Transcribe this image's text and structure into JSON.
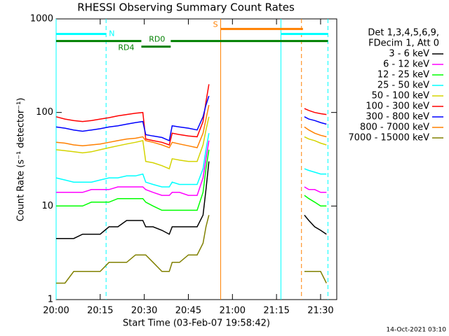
{
  "chart_data": {
    "type": "line",
    "title": "RHESSI Observing Summary Count Rates",
    "xlabel": "Start Time (03-Feb-07 19:58:42)",
    "ylabel": "Count Rate (s⁻¹ detector⁻¹)",
    "legend_header": [
      "Det 1,3,4,5,6,9,",
      "FDecim 1, Att 0"
    ],
    "footer": "14-Oct-2021 03:10",
    "log_y": true,
    "xlim": [
      0,
      95.5
    ],
    "ylim": [
      1,
      1000
    ],
    "xticks": [
      {
        "value": 0,
        "label": "20:00"
      },
      {
        "value": 15,
        "label": "20:15"
      },
      {
        "value": 30,
        "label": "20:30"
      },
      {
        "value": 45,
        "label": "20:45"
      },
      {
        "value": 60,
        "label": "21:00"
      },
      {
        "value": 75,
        "label": "21:15"
      },
      {
        "value": 90,
        "label": "21:30"
      }
    ],
    "yticks": [
      1,
      10,
      100,
      1000
    ],
    "x": [
      0,
      3,
      6,
      9,
      12,
      15,
      18,
      21,
      24,
      27,
      29.5,
      30.5,
      33,
      36,
      38.5,
      39.5,
      42,
      45,
      48,
      50,
      51,
      52,
      53,
      84.5,
      86,
      88,
      90,
      92
    ],
    "series": [
      {
        "name": "3 - 6 keV",
        "color": "#000000",
        "values": [
          4.5,
          4.5,
          4.5,
          5,
          5,
          5,
          6,
          6,
          7,
          7,
          7,
          6,
          6,
          5.5,
          5,
          6,
          6,
          6,
          6,
          8,
          15,
          30,
          null,
          8,
          7,
          6,
          5.5,
          5
        ]
      },
      {
        "name": "6 - 12 keV",
        "color": "#ff00ff",
        "values": [
          14,
          14,
          14,
          14,
          15,
          15,
          15,
          16,
          16,
          16,
          16,
          15,
          14,
          13,
          13,
          14,
          14,
          13,
          13,
          20,
          32,
          50,
          null,
          16,
          15,
          15,
          14,
          14
        ]
      },
      {
        "name": "12 - 25 keV",
        "color": "#00ff00",
        "values": [
          10,
          10,
          10,
          10,
          11,
          11,
          11,
          12,
          12,
          12,
          12,
          11,
          10,
          9,
          9,
          9,
          9,
          9,
          9,
          14,
          25,
          40,
          null,
          13,
          12,
          11,
          10,
          10
        ]
      },
      {
        "name": "25 - 50 keV",
        "color": "#00ffff",
        "values": [
          20,
          19,
          18,
          18,
          18,
          19,
          20,
          20,
          21,
          21,
          22,
          18,
          17,
          16,
          16,
          18,
          17,
          17,
          17,
          25,
          40,
          60,
          null,
          25,
          24,
          23,
          22,
          22
        ]
      },
      {
        "name": "50 - 100 keV",
        "color": "#d4d400",
        "values": [
          40,
          39,
          38,
          37,
          38,
          40,
          42,
          44,
          46,
          48,
          50,
          30,
          29,
          27,
          25,
          32,
          31,
          30,
          30,
          45,
          65,
          90,
          null,
          55,
          52,
          50,
          47,
          45
        ]
      },
      {
        "name": "100 - 300 keV",
        "color": "#ff0000",
        "values": [
          90,
          85,
          82,
          80,
          82,
          85,
          88,
          92,
          95,
          98,
          100,
          52,
          50,
          48,
          45,
          60,
          58,
          56,
          55,
          80,
          130,
          200,
          null,
          110,
          105,
          100,
          97,
          95
        ]
      },
      {
        "name": "300 - 800 keV",
        "color": "#0000ff",
        "values": [
          70,
          68,
          65,
          63,
          65,
          67,
          70,
          72,
          75,
          78,
          80,
          58,
          56,
          54,
          50,
          72,
          70,
          68,
          65,
          90,
          120,
          150,
          null,
          90,
          85,
          82,
          78,
          75
        ]
      },
      {
        "name": "800 - 7000 keV",
        "color": "#ff8000",
        "values": [
          48,
          47,
          45,
          44,
          45,
          46,
          48,
          50,
          52,
          53,
          55,
          50,
          48,
          45,
          42,
          48,
          46,
          44,
          42,
          60,
          85,
          120,
          null,
          70,
          65,
          60,
          57,
          55
        ]
      },
      {
        "name": "7000 - 15000 keV",
        "color": "#808000",
        "values": [
          1.5,
          1.5,
          2,
          2,
          2,
          2,
          2.5,
          2.5,
          2.5,
          3,
          3,
          3,
          2.5,
          2,
          2,
          2.5,
          2.5,
          3,
          3,
          4,
          6,
          8,
          null,
          2,
          2,
          2,
          2,
          1.5
        ]
      }
    ],
    "vlines": [
      {
        "x": 0,
        "color": "#00ffff",
        "dashed": false
      },
      {
        "x": 17,
        "color": "#00ffff",
        "dashed": true
      },
      {
        "x": 56,
        "color": "#ff8000",
        "dashed": false
      },
      {
        "x": 76.5,
        "color": "#00ffff",
        "dashed": false
      },
      {
        "x": 83.5,
        "color": "#ff8000",
        "dashed": true
      },
      {
        "x": 92.5,
        "color": "#00ffff",
        "dashed": true
      }
    ],
    "bars": [
      {
        "x": [
          0,
          17
        ],
        "y": 690,
        "color": "#00ffff",
        "label": "N"
      },
      {
        "x": [
          56,
          84
        ],
        "y": 780,
        "color": "#ff8000",
        "label": "S"
      },
      {
        "x": [
          76.5,
          92.5
        ],
        "y": 690,
        "color": "#00ffff"
      },
      {
        "x": [
          0,
          29
        ],
        "y": 580,
        "color": "#008000"
      },
      {
        "x": [
          29,
          39
        ],
        "y": 505,
        "color": "#008000",
        "label": "RD4"
      },
      {
        "x": [
          39,
          92.5
        ],
        "y": 580,
        "color": "#008000",
        "label": "RD0"
      }
    ]
  }
}
